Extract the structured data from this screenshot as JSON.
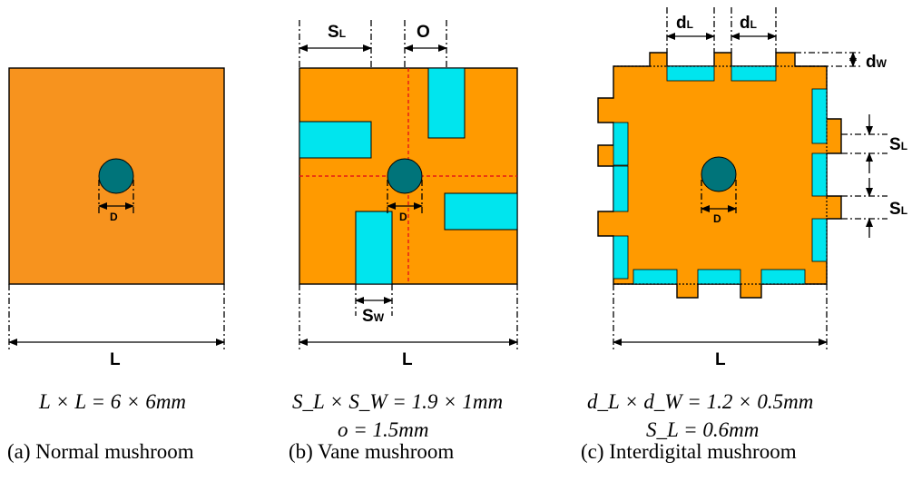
{
  "colors": {
    "patch": "#f7931e",
    "patch2": "#ff9a00",
    "slot": "#00e5ee",
    "via": "#00747a",
    "line": "#000000",
    "center": "#e0001b"
  },
  "labels": {
    "a_D": "D",
    "a_L": "L",
    "b_SL": "S",
    "b_SL_sub": "L",
    "b_O": "O",
    "b_D": "D",
    "b_SW": "S",
    "b_SW_sub": "W",
    "b_L": "L",
    "c_dL1": "d",
    "c_dL1_sub": "L",
    "c_dL2": "d",
    "c_dL2_sub": "L",
    "c_dW": "d",
    "c_dW_sub": "W",
    "c_SL1": "S",
    "c_SL1_sub": "L",
    "c_SL2": "S",
    "c_SL2_sub": "L",
    "c_D": "D",
    "c_L": "L"
  },
  "equations": {
    "a": "L × L = 6 × 6mm",
    "b1": "S_L × S_W = 1.9 × 1mm",
    "b2": "o = 1.5mm",
    "c1": "d_L × d_W = 1.2 × 0.5mm",
    "c2": "S_L = 0.6mm"
  },
  "captions": {
    "a": "(a) Normal mushroom",
    "b": "(b) Vane mushroom",
    "c": "(c) Interdigital mushroom"
  }
}
